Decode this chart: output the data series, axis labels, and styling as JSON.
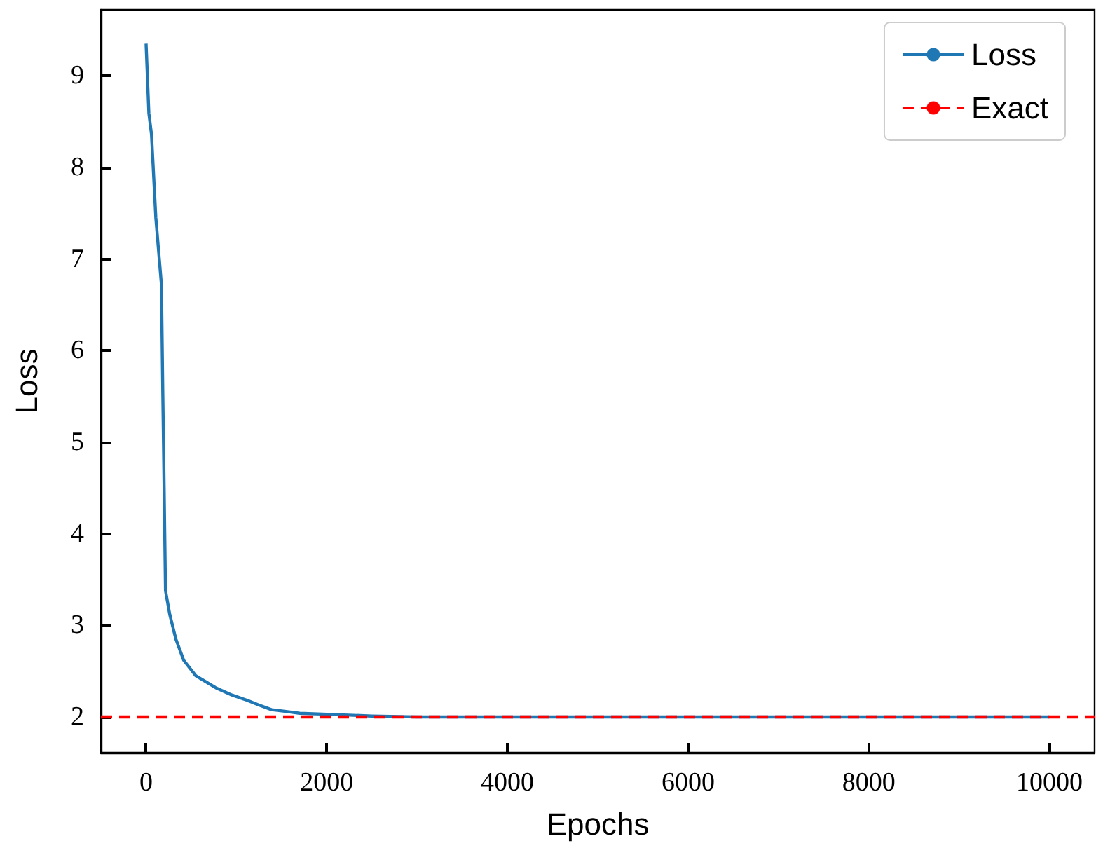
{
  "chart_data": {
    "type": "line",
    "xlabel": "Epochs",
    "ylabel": "Loss",
    "xlim": [
      -500,
      10500
    ],
    "xticks": [
      0,
      2000,
      4000,
      6000,
      8000,
      10000
    ],
    "ylim": [
      1.61,
      9.72
    ],
    "yticks": [
      2,
      3,
      4,
      5,
      6,
      7,
      8,
      9
    ],
    "series": [
      {
        "name": "Loss",
        "color": "#1f77b4",
        "x": [
          0,
          31,
          60,
          108,
          170,
          185,
          200,
          215,
          262,
          330,
          416,
          550,
          770,
          950,
          1125,
          1250,
          1390,
          1550,
          1700,
          2000,
          2500,
          3000,
          4000,
          6000,
          8000,
          10000
        ],
        "values": [
          9.35,
          8.59,
          8.36,
          7.45,
          6.72,
          5.55,
          4.5,
          3.38,
          3.12,
          2.85,
          2.62,
          2.45,
          2.32,
          2.24,
          2.18,
          2.13,
          2.08,
          2.06,
          2.04,
          2.03,
          2.01,
          2.0,
          2.0,
          2.0,
          2.0,
          2.0
        ]
      },
      {
        "name": "Exact",
        "color": "#ff0000",
        "type": "line",
        "line_style": "dashed",
        "x": [
          -500,
          10500
        ],
        "values": [
          2,
          2
        ]
      }
    ],
    "grid": false,
    "legend": "top right",
    "marker": "none"
  }
}
